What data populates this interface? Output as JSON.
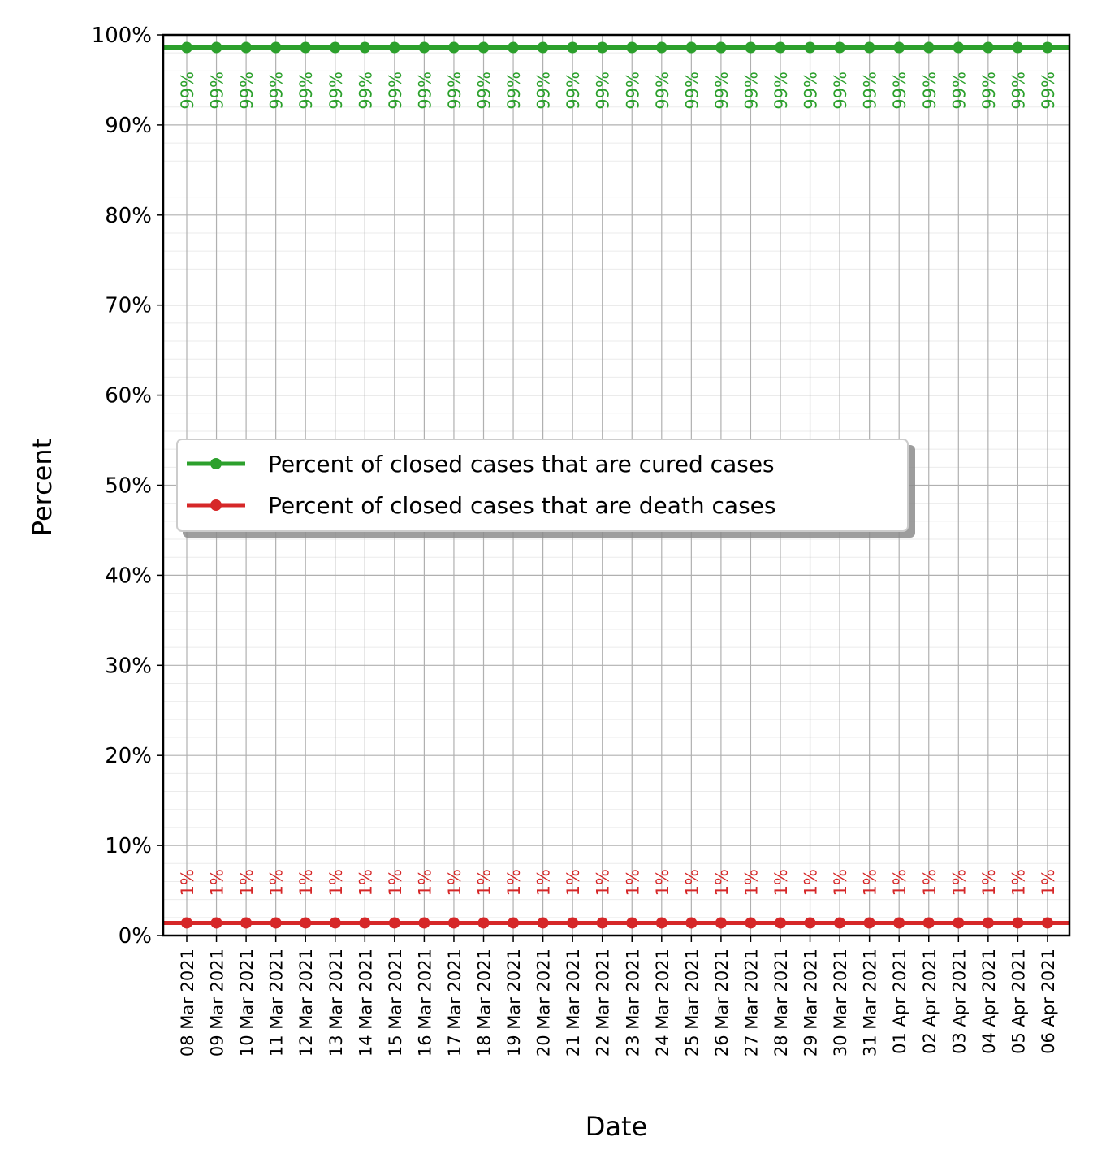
{
  "chart_data": {
    "type": "line",
    "title": "",
    "xlabel": "Date",
    "ylabel": "Percent",
    "ylim": [
      0,
      100
    ],
    "yticks": [
      0,
      10,
      20,
      30,
      40,
      50,
      60,
      70,
      80,
      90,
      100
    ],
    "ytick_labels": [
      "0%",
      "10%",
      "20%",
      "30%",
      "40%",
      "50%",
      "60%",
      "70%",
      "80%",
      "90%",
      "100%"
    ],
    "grid": true,
    "legend_position": "center-left",
    "categories": [
      "08 Mar 2021",
      "09 Mar 2021",
      "10 Mar 2021",
      "11 Mar 2021",
      "12 Mar 2021",
      "13 Mar 2021",
      "14 Mar 2021",
      "15 Mar 2021",
      "16 Mar 2021",
      "17 Mar 2021",
      "18 Mar 2021",
      "19 Mar 2021",
      "20 Mar 2021",
      "21 Mar 2021",
      "22 Mar 2021",
      "23 Mar 2021",
      "24 Mar 2021",
      "25 Mar 2021",
      "26 Mar 2021",
      "27 Mar 2021",
      "28 Mar 2021",
      "29 Mar 2021",
      "30 Mar 2021",
      "31 Mar 2021",
      "01 Apr 2021",
      "02 Apr 2021",
      "03 Apr 2021",
      "04 Apr 2021",
      "05 Apr 2021",
      "06 Apr 2021"
    ],
    "series": [
      {
        "name": "Percent of closed cases that are cured cases",
        "color": "#2ca02c",
        "values": [
          98.6,
          98.6,
          98.6,
          98.6,
          98.6,
          98.6,
          98.6,
          98.6,
          98.6,
          98.6,
          98.6,
          98.6,
          98.6,
          98.6,
          98.6,
          98.6,
          98.6,
          98.6,
          98.6,
          98.6,
          98.6,
          98.6,
          98.6,
          98.6,
          98.6,
          98.6,
          98.6,
          98.6,
          98.6,
          98.6
        ],
        "labels": [
          "99%",
          "99%",
          "99%",
          "99%",
          "99%",
          "99%",
          "99%",
          "99%",
          "99%",
          "99%",
          "99%",
          "99%",
          "99%",
          "99%",
          "99%",
          "99%",
          "99%",
          "99%",
          "99%",
          "99%",
          "99%",
          "99%",
          "99%",
          "99%",
          "99%",
          "99%",
          "99%",
          "99%",
          "99%",
          "99%"
        ]
      },
      {
        "name": "Percent of closed cases that are death cases",
        "color": "#d62728",
        "values": [
          1.4,
          1.4,
          1.4,
          1.4,
          1.4,
          1.4,
          1.4,
          1.4,
          1.4,
          1.4,
          1.4,
          1.4,
          1.4,
          1.4,
          1.4,
          1.4,
          1.4,
          1.4,
          1.4,
          1.4,
          1.4,
          1.4,
          1.4,
          1.4,
          1.4,
          1.4,
          1.4,
          1.4,
          1.4,
          1.4
        ],
        "labels": [
          "1%",
          "1%",
          "1%",
          "1%",
          "1%",
          "1%",
          "1%",
          "1%",
          "1%",
          "1%",
          "1%",
          "1%",
          "1%",
          "1%",
          "1%",
          "1%",
          "1%",
          "1%",
          "1%",
          "1%",
          "1%",
          "1%",
          "1%",
          "1%",
          "1%",
          "1%",
          "1%",
          "1%",
          "1%",
          "1%"
        ]
      }
    ]
  }
}
